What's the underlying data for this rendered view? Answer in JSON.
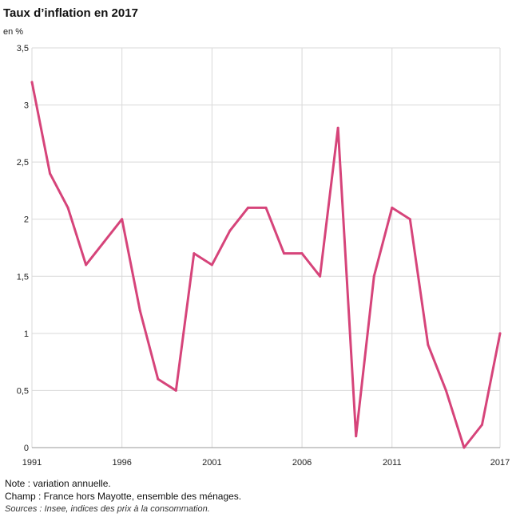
{
  "chart_data": {
    "type": "line",
    "title": "Taux d’inflation en 2017",
    "ylabel": "en %",
    "xlabel": "",
    "x": [
      1991,
      1992,
      1993,
      1994,
      1995,
      1996,
      1997,
      1998,
      1999,
      2000,
      2001,
      2002,
      2003,
      2004,
      2005,
      2006,
      2007,
      2008,
      2009,
      2010,
      2011,
      2012,
      2013,
      2014,
      2015,
      2016,
      2017
    ],
    "series": [
      {
        "values": [
          3.2,
          2.4,
          2.1,
          1.6,
          1.8,
          2.0,
          1.2,
          0.6,
          0.5,
          1.7,
          1.6,
          1.9,
          2.1,
          2.1,
          1.7,
          1.7,
          1.5,
          2.8,
          0.1,
          1.5,
          2.1,
          2.0,
          0.9,
          0.5,
          0.0,
          0.2,
          1.0
        ]
      }
    ],
    "xticks": [
      1991,
      1996,
      2001,
      2006,
      2011,
      2017
    ],
    "xtick_labels": [
      "1991",
      "1996",
      "2001",
      "2006",
      "2011",
      "2017"
    ],
    "yticks": [
      0,
      0.5,
      1,
      1.5,
      2,
      2.5,
      3,
      3.5
    ],
    "ytick_labels": [
      "0",
      "0,5",
      "1",
      "1,5",
      "2",
      "2,5",
      "3",
      "3,5"
    ],
    "xlim": [
      1991,
      2017
    ],
    "ylim": [
      0,
      3.5
    ],
    "grid": true,
    "line_color": "#d6447a",
    "grid_color": "#d9d9d9"
  },
  "notes": {
    "note": "Note : variation annuelle.",
    "champ": "Champ : France hors Mayotte, ensemble des ménages.",
    "sources": "Sources : Insee, indices des prix à la consommation."
  }
}
